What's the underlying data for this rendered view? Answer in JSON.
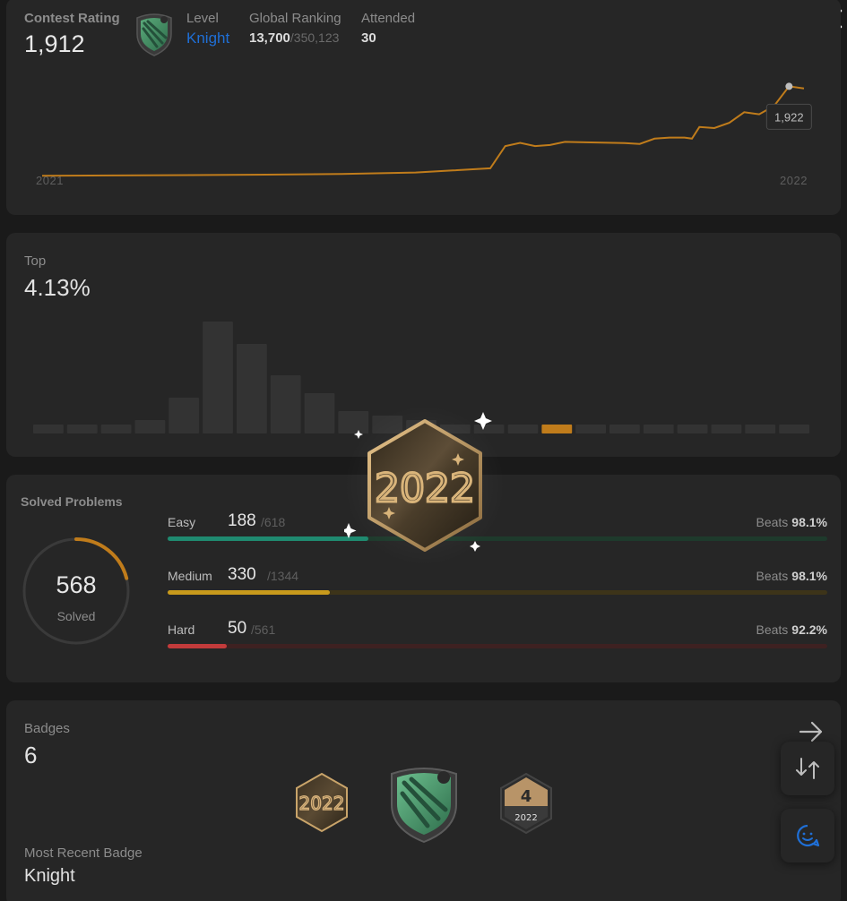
{
  "rating": {
    "label": "Contest Rating",
    "value": "1,912",
    "level_label": "Level",
    "level_value": "Knight",
    "ranking_label": "Global Ranking",
    "ranking_value": "13,700",
    "ranking_total": "/350,123",
    "attended_label": "Attended",
    "attended_value": "30",
    "tooltip": "1,922",
    "x_start": "2021",
    "x_end": "2022",
    "line_color": "#c07c1b"
  },
  "chart_data": [
    {
      "type": "line",
      "x": [
        2021.0,
        2021.1,
        2021.2,
        2021.3,
        2021.4,
        2021.5,
        2021.55,
        2021.6,
        2021.62,
        2021.64,
        2021.66,
        2021.68,
        2021.7,
        2021.72,
        2021.75,
        2021.78,
        2021.8,
        2021.82,
        2021.84,
        2021.86,
        2021.87,
        2021.88,
        2021.9,
        2021.92,
        2021.94,
        2021.96,
        2021.98,
        2022.0,
        2022.02
      ],
      "values": [
        1500,
        1501,
        1503,
        1505,
        1508,
        1515,
        1525,
        1535,
        1640,
        1655,
        1640,
        1645,
        1660,
        1658,
        1656,
        1654,
        1650,
        1675,
        1680,
        1680,
        1675,
        1730,
        1725,
        1750,
        1800,
        1790,
        1830,
        1922,
        1912
      ],
      "ylim": [
        1450,
        2000
      ]
    },
    {
      "type": "bar",
      "values": [
        2,
        2,
        2,
        3,
        8,
        25,
        20,
        13,
        9,
        5,
        4,
        3,
        2,
        2,
        2,
        2,
        2,
        2,
        2,
        2,
        2,
        2,
        2
      ],
      "highlight_index": 15,
      "bar_color": "#333333",
      "highlight_color": "#c07c1b"
    }
  ],
  "top": {
    "label": "Top",
    "value": "4.13%"
  },
  "solved": {
    "label": "Solved Problems",
    "count": "568",
    "sub": "Solved",
    "ring_fraction": 0.21,
    "ring_color": "#c07c1b",
    "rows": [
      {
        "name": "Easy",
        "count": "188",
        "total": "/618",
        "beats_label": "Beats",
        "beats": "98.1%",
        "fraction": 0.304,
        "fill": "#1f8a70",
        "track": "#1e3a2c"
      },
      {
        "name": "Medium",
        "count": "330",
        "total": "/1344",
        "beats_label": "Beats",
        "beats": "98.1%",
        "fraction": 0.246,
        "fill": "#c89a1c",
        "track": "#3d3419"
      },
      {
        "name": "Hard",
        "count": "50",
        "total": "/561",
        "beats_label": "Beats",
        "beats": "92.2%",
        "fraction": 0.089,
        "fill": "#c23b3b",
        "track": "#3e2121"
      }
    ]
  },
  "badges": {
    "label": "Badges",
    "count": "6",
    "recent_label": "Most Recent Badge",
    "recent_value": "Knight",
    "badge_year_text": "2022",
    "badge_number_text": "4"
  },
  "icons": {
    "close": "close-icon",
    "arrow": "arrow-right-icon",
    "swap": "swap-icon",
    "chat": "chat-icon",
    "knight": "knight-shield-icon"
  }
}
